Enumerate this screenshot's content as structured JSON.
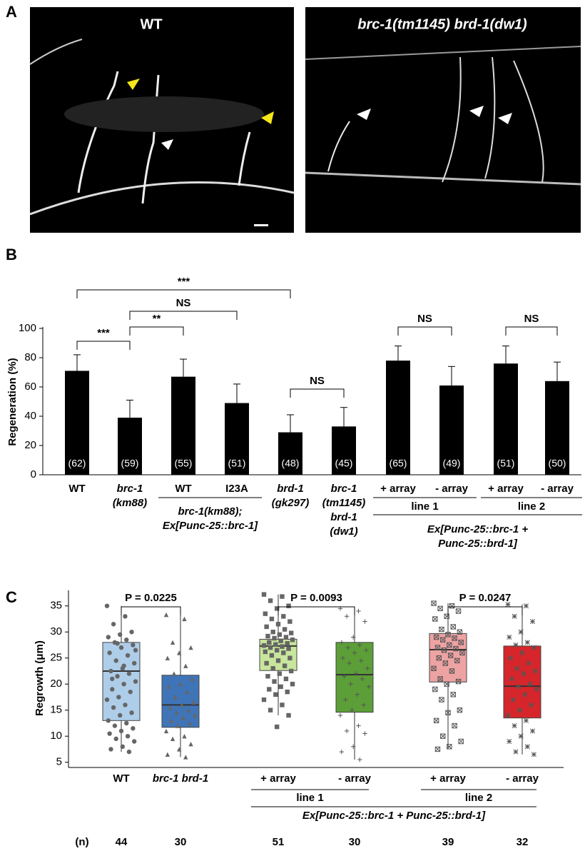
{
  "panel_labels": [
    "A",
    "B",
    "C"
  ],
  "images": [
    {
      "label": "WT"
    },
    {
      "label": "brc-1(tm1145) brd-1(dw1)"
    }
  ],
  "chart_data": [
    {
      "type": "bar",
      "y_label": "Regeneration (%)",
      "color": "#000000",
      "categories": [
        [
          "WT"
        ],
        [
          "brc-1",
          "(km88)"
        ],
        [
          "WT"
        ],
        [
          "I23A"
        ],
        [
          "brd-1",
          "(gk297)"
        ],
        [
          "brc-1",
          "(tm1145)",
          "brd-1",
          "(dw1)"
        ],
        [
          "+ array"
        ],
        [
          "- array"
        ],
        [
          "+ array"
        ],
        [
          "- array"
        ]
      ],
      "values": [
        71,
        39,
        67,
        49,
        29,
        33,
        78,
        61,
        76,
        64
      ],
      "errors": [
        11,
        12,
        12,
        13,
        12,
        13,
        10,
        13,
        12,
        13
      ],
      "n_labels": [
        "(62)",
        "(59)",
        "(55)",
        "(51)",
        "(48)",
        "(45)",
        "(65)",
        "(49)",
        "(51)",
        "(50)"
      ],
      "groups": [
        {
          "label": [
            "brc-1(km88);",
            "Ex[Punc-25::brc-1]"
          ],
          "span": [
            2,
            3
          ]
        },
        {
          "label": [
            "line 1"
          ],
          "span": [
            6,
            7
          ]
        },
        {
          "label": [
            "line 2"
          ],
          "span": [
            8,
            9
          ]
        },
        {
          "label": [
            "Ex[Punc-25::brc-1 +",
            "Punc-25::brd-1]"
          ],
          "span": [
            6,
            9
          ]
        }
      ],
      "comparisons": [
        {
          "pair": [
            0,
            1
          ],
          "label": "***"
        },
        {
          "pair": [
            1,
            2
          ],
          "label": "**"
        },
        {
          "pair": [
            1,
            3
          ],
          "label": "NS"
        },
        {
          "pair": [
            0,
            4
          ],
          "label": "***"
        },
        {
          "pair": [
            4,
            5
          ],
          "label": "NS"
        },
        {
          "pair": [
            6,
            7
          ],
          "label": "NS"
        },
        {
          "pair": [
            8,
            9
          ],
          "label": "NS"
        }
      ],
      "ylim": [
        0,
        100
      ],
      "yticks": [
        0,
        20,
        40,
        60,
        80,
        100
      ]
    },
    {
      "type": "box",
      "y_label": "Regrowth (μm)",
      "categories": [
        "WT",
        "brc-1 brd-1",
        "+ array",
        "- array",
        "+ array",
        "- array"
      ],
      "boxes": [
        {
          "color": "#aecde9",
          "marker": "circle",
          "whislo": 7,
          "q1": 13,
          "med": 22.5,
          "q3": 28,
          "whishi": 35,
          "points": [
            35,
            33,
            31.5,
            30,
            29.5,
            29,
            28.5,
            28,
            27.5,
            27,
            26,
            25.5,
            24.5,
            24,
            23,
            22.5,
            22,
            21.5,
            20.5,
            20,
            19,
            18.5,
            17.5,
            17,
            16,
            15.5,
            14.5,
            14,
            13,
            12.5,
            12,
            11.5,
            11,
            10.5,
            10,
            9.5,
            9,
            8,
            7.5,
            7,
            27.8,
            26.5,
            23.5,
            21
          ]
        },
        {
          "color": "#3f74b8",
          "marker": "triangle",
          "whislo": 6,
          "q1": 11.7,
          "med": 16,
          "q3": 21.7,
          "whishi": 33.3,
          "points": [
            33.3,
            32.5,
            28,
            27,
            26,
            25,
            23.5,
            22,
            21,
            20,
            19.5,
            18.5,
            17.5,
            16.5,
            16,
            15.5,
            15,
            14.5,
            14,
            13.5,
            13,
            12.5,
            12,
            11,
            10,
            9.5,
            8.5,
            7.5,
            6.5,
            6
          ]
        },
        {
          "color": "#c8e69c",
          "marker": "square",
          "whislo": 14,
          "q1": 22.6,
          "med": 27.3,
          "q3": 28.6,
          "whishi": 37.2,
          "points": [
            37.2,
            36.8,
            36,
            35,
            34.5,
            33.5,
            33,
            32.5,
            32,
            31.5,
            31,
            30.5,
            30,
            29.8,
            29.5,
            29.2,
            29,
            28.8,
            28.5,
            28.3,
            28,
            27.8,
            27.6,
            27.4,
            27.2,
            27,
            26.8,
            26.5,
            26.2,
            26,
            25.5,
            25,
            24.5,
            24,
            23.5,
            23,
            22.5,
            22,
            21.5,
            21,
            20.5,
            20,
            19.5,
            19,
            18.5,
            18,
            17,
            16,
            15,
            14,
            11.8
          ]
        },
        {
          "color": "#5c9e38",
          "marker": "plus",
          "whislo": 5.5,
          "q1": 14.6,
          "med": 21.8,
          "q3": 28,
          "whishi": 34.5,
          "points": [
            34.5,
            34,
            33,
            32,
            29,
            28,
            27.5,
            27,
            26.5,
            26,
            25,
            24.5,
            24,
            23,
            22,
            21.5,
            21,
            20,
            19.5,
            18,
            17,
            16,
            15,
            14,
            12,
            11,
            10.5,
            8,
            7,
            5.5
          ]
        },
        {
          "color": "#eea3a3",
          "marker": "squarex",
          "whislo": 7.5,
          "q1": 20.4,
          "med": 26.6,
          "q3": 29.7,
          "whishi": 35.5,
          "points": [
            35.5,
            35,
            34.5,
            34,
            33,
            32.5,
            31,
            30.5,
            30,
            29.5,
            29,
            28.8,
            28.5,
            28,
            27.5,
            27,
            26.8,
            26.5,
            26,
            25.5,
            25,
            24.5,
            24,
            23,
            22.5,
            21,
            20.5,
            20,
            19,
            18,
            17,
            15,
            14.5,
            13,
            12,
            10,
            9,
            8,
            7.5
          ]
        },
        {
          "color": "#d6262b",
          "marker": "asterisk",
          "whislo": 6.5,
          "q1": 13.5,
          "med": 19.6,
          "q3": 27.3,
          "whishi": 35.3,
          "points": [
            35.3,
            35,
            33,
            32,
            30,
            29,
            28,
            27.5,
            27,
            26,
            25,
            24,
            23,
            22.5,
            22,
            21,
            20,
            19.5,
            19,
            18,
            17,
            16,
            15,
            14,
            13,
            12,
            11,
            10,
            9,
            8,
            7,
            6.5
          ]
        }
      ],
      "groups": [
        {
          "label": [
            "line 1"
          ],
          "span": [
            2,
            3
          ]
        },
        {
          "label": [
            "line 2"
          ],
          "span": [
            4,
            5
          ]
        },
        {
          "label": [
            "Ex[Punc-25::brc-1 + Punc-25::brd-1]"
          ],
          "span": [
            2,
            5
          ]
        }
      ],
      "comparisons": [
        {
          "pair": [
            0,
            1
          ],
          "label": "P = 0.0225"
        },
        {
          "pair": [
            2,
            3
          ],
          "label": "P = 0.0093"
        },
        {
          "pair": [
            4,
            5
          ],
          "label": "P = 0.0247"
        }
      ],
      "n_label": "(n)",
      "n": [
        44,
        30,
        51,
        30,
        39,
        32
      ],
      "ylim": [
        4,
        38
      ],
      "yticks": [
        5,
        10,
        15,
        20,
        25,
        30,
        35
      ]
    }
  ]
}
